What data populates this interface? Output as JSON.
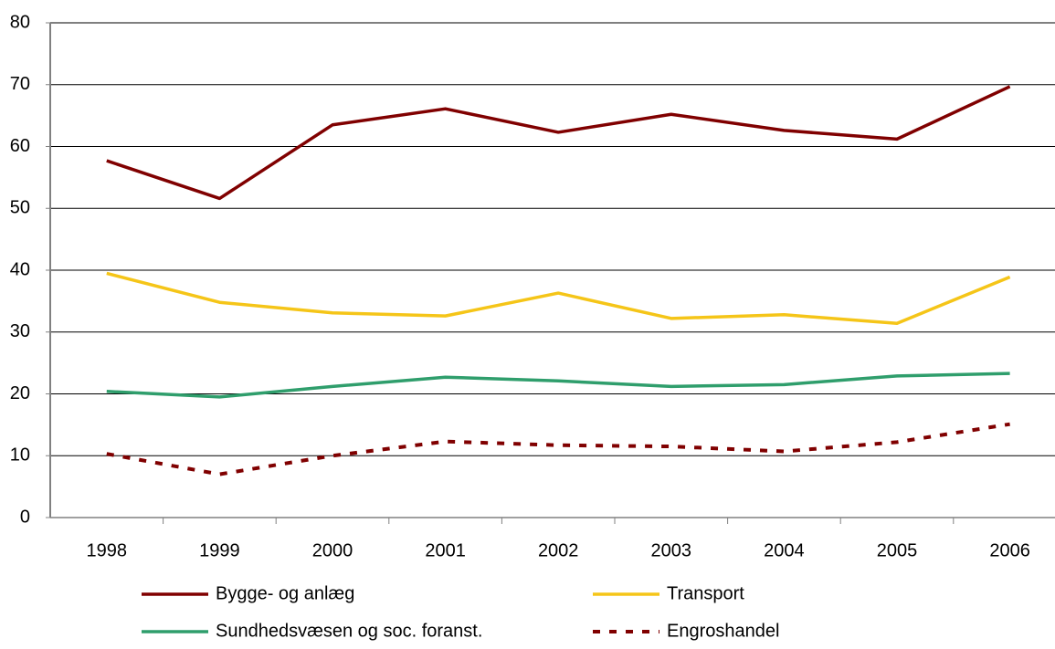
{
  "chart_data": {
    "type": "line",
    "categories": [
      "1998",
      "1999",
      "2000",
      "2001",
      "2002",
      "2003",
      "2004",
      "2005",
      "2006"
    ],
    "series": [
      {
        "name": "Bygge- og anlæg",
        "color": "#800000",
        "dash": false,
        "values": [
          57.7,
          51.6,
          63.5,
          66.1,
          62.3,
          65.2,
          62.6,
          61.2,
          69.7
        ]
      },
      {
        "name": "Transport",
        "color": "#f5c518",
        "dash": false,
        "values": [
          39.5,
          34.8,
          33.1,
          32.6,
          36.3,
          32.2,
          32.8,
          31.4,
          38.9
        ]
      },
      {
        "name": "Sundhedsvæsen og soc. foranst.",
        "color": "#2f9e6c",
        "dash": false,
        "values": [
          20.4,
          19.5,
          21.2,
          22.7,
          22.1,
          21.2,
          21.5,
          22.9,
          23.3
        ]
      },
      {
        "name": "Engroshandel",
        "color": "#800000",
        "dash": true,
        "values": [
          10.3,
          7.0,
          10.0,
          12.3,
          11.7,
          11.5,
          10.7,
          12.2,
          15.1
        ]
      }
    ],
    "ylim": [
      0,
      80
    ],
    "yticks": [
      0,
      10,
      20,
      30,
      40,
      50,
      60,
      70,
      80
    ],
    "grid": true,
    "legend": "bottom"
  }
}
